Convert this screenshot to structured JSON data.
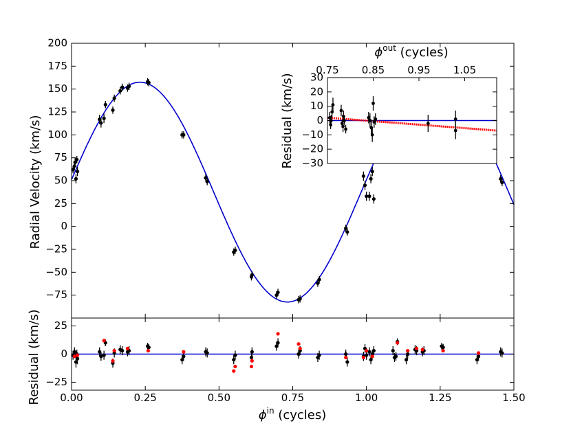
{
  "chart_data": [
    {
      "id": "main",
      "type": "scatter",
      "ylabel": "Radial Velocity (km/s)",
      "xlim": [
        0,
        1.5
      ],
      "ylim": [
        -100,
        200
      ],
      "yticks": [
        200,
        175,
        150,
        125,
        100,
        75,
        50,
        25,
        0,
        -25,
        -50,
        -75
      ],
      "ytick_labels": [
        "200",
        "175",
        "150",
        "125",
        "100",
        "75",
        "50",
        "25",
        "0",
        "−25",
        "−50",
        "−75"
      ],
      "model": {
        "type": "sinusoid",
        "gamma": 37.5,
        "amplitude": 120,
        "phase_peak": 0.232
      },
      "series": [
        {
          "name": "",
          "points": [
            [
              0.005,
              62,
              4
            ],
            [
              0.01,
              66,
              4
            ],
            [
              0.012,
              70,
              5
            ],
            [
              0.015,
              52,
              5
            ],
            [
              0.02,
              60,
              5
            ],
            [
              0.018,
              73,
              4
            ],
            [
              0.095,
              117,
              5
            ],
            [
              0.1,
              113,
              5
            ],
            [
              0.11,
              118,
              5
            ],
            [
              0.115,
              133,
              4
            ],
            [
              0.14,
              127,
              4
            ],
            [
              0.145,
              140,
              4
            ],
            [
              0.165,
              148,
              4
            ],
            [
              0.172,
              152,
              4
            ],
            [
              0.19,
              151,
              4
            ],
            [
              0.195,
              153,
              4
            ],
            [
              0.258,
              158,
              4
            ],
            [
              0.262,
              157,
              4
            ],
            [
              0.375,
              100,
              4
            ],
            [
              0.38,
              100,
              4
            ],
            [
              0.455,
              53,
              4
            ],
            [
              0.46,
              49,
              4
            ],
            [
              0.55,
              -28,
              4
            ],
            [
              0.555,
              -26,
              4
            ],
            [
              0.61,
              -55,
              4
            ],
            [
              0.612,
              -53,
              4
            ],
            [
              0.695,
              -75,
              4
            ],
            [
              0.7,
              -72,
              4
            ],
            [
              0.77,
              -80,
              4
            ],
            [
              0.775,
              -79,
              4
            ],
            [
              0.835,
              -62,
              4
            ],
            [
              0.84,
              -58,
              4
            ],
            [
              0.93,
              -2,
              4
            ],
            [
              0.935,
              -6,
              4
            ],
            [
              0.99,
              55,
              5
            ],
            [
              0.995,
              45,
              5
            ],
            [
              1.0,
              33,
              5
            ],
            [
              1.01,
              33,
              5
            ],
            [
              1.015,
              52,
              5
            ],
            [
              1.02,
              60,
              5
            ],
            [
              1.025,
              30,
              5
            ],
            [
              1.455,
              52,
              4
            ],
            [
              1.46,
              48,
              4
            ]
          ]
        }
      ]
    },
    {
      "id": "residual",
      "type": "scatter",
      "xlabel": "ϕin (cycles)",
      "xlabel_parts": {
        "symbol": "ϕ",
        "sup": "in",
        "rest": " (cycles)"
      },
      "ylabel": "Residual (km/s)",
      "xlim": [
        0,
        1.5
      ],
      "ylim": [
        -32,
        32
      ],
      "xticks": [
        0,
        0.25,
        0.5,
        0.75,
        1.0,
        1.25,
        1.5
      ],
      "xtick_labels": [
        "0.00",
        "0.25",
        "0.50",
        "0.75",
        "1.00",
        "1.25",
        "1.50"
      ],
      "yticks": [
        25,
        0,
        -25
      ],
      "ytick_labels": [
        "25",
        "0",
        "−25"
      ],
      "series": [
        {
          "name": "",
          "color": "#000000",
          "points": [
            [
              0.005,
              -1,
              4
            ],
            [
              0.01,
              2,
              4
            ],
            [
              0.015,
              -7,
              5
            ],
            [
              0.02,
              -4,
              5
            ],
            [
              0.018,
              0,
              4
            ],
            [
              0.095,
              2,
              4
            ],
            [
              0.1,
              -2,
              4
            ],
            [
              0.11,
              -1,
              4
            ],
            [
              0.115,
              10,
              3
            ],
            [
              0.14,
              -8,
              4
            ],
            [
              0.145,
              1,
              4
            ],
            [
              0.165,
              4,
              4
            ],
            [
              0.172,
              3,
              4
            ],
            [
              0.19,
              2,
              4
            ],
            [
              0.195,
              3,
              4
            ],
            [
              0.258,
              7,
              3
            ],
            [
              0.262,
              6,
              3
            ],
            [
              0.375,
              -5,
              4
            ],
            [
              0.38,
              -2,
              4
            ],
            [
              0.455,
              2,
              4
            ],
            [
              0.46,
              1,
              4
            ],
            [
              0.55,
              -5,
              4
            ],
            [
              0.555,
              -1,
              4
            ],
            [
              0.61,
              -3,
              4
            ],
            [
              0.612,
              2,
              4
            ],
            [
              0.695,
              7,
              4
            ],
            [
              0.7,
              10,
              4
            ],
            [
              0.77,
              0,
              4
            ],
            [
              0.775,
              3,
              4
            ],
            [
              0.835,
              -3,
              4
            ],
            [
              0.84,
              -1,
              4
            ],
            [
              0.93,
              0,
              4
            ],
            [
              0.935,
              -7,
              4
            ],
            [
              0.99,
              -2,
              4
            ],
            [
              0.995,
              5,
              4
            ],
            [
              1.0,
              -1,
              4
            ],
            [
              1.01,
              2,
              4
            ],
            [
              1.015,
              -5,
              4
            ],
            [
              1.02,
              0,
              4
            ],
            [
              1.025,
              3,
              4
            ],
            [
              1.09,
              3,
              4
            ],
            [
              1.095,
              -3,
              4
            ],
            [
              1.1,
              -2,
              4
            ],
            [
              1.105,
              11,
              3
            ],
            [
              1.135,
              -5,
              4
            ],
            [
              1.14,
              0,
              4
            ],
            [
              1.165,
              4,
              4
            ],
            [
              1.17,
              3,
              4
            ],
            [
              1.19,
              2,
              4
            ],
            [
              1.195,
              3,
              4
            ],
            [
              1.255,
              7,
              3
            ],
            [
              1.26,
              6,
              3
            ],
            [
              1.375,
              -5,
              4
            ],
            [
              1.38,
              -2,
              4
            ],
            [
              1.455,
              2,
              4
            ],
            [
              1.46,
              1,
              4
            ]
          ]
        },
        {
          "name": "",
          "color": "#ff0000",
          "points": [
            [
              0.01,
              -2
            ],
            [
              0.02,
              -1
            ],
            [
              0.11,
              12
            ],
            [
              0.14,
              -6
            ],
            [
              0.145,
              3
            ],
            [
              0.19,
              5
            ],
            [
              0.26,
              3
            ],
            [
              0.38,
              2
            ],
            [
              0.55,
              -15
            ],
            [
              0.555,
              -11
            ],
            [
              0.61,
              -11
            ],
            [
              0.612,
              -6
            ],
            [
              0.7,
              18
            ],
            [
              0.77,
              9
            ],
            [
              0.775,
              5
            ],
            [
              0.93,
              -3
            ],
            [
              0.99,
              -3
            ],
            [
              1.0,
              3
            ],
            [
              1.02,
              -2
            ],
            [
              1.105,
              10
            ],
            [
              1.14,
              3
            ],
            [
              1.17,
              5
            ],
            [
              1.19,
              4
            ],
            [
              1.26,
              3
            ],
            [
              1.38,
              1
            ]
          ]
        }
      ]
    },
    {
      "id": "inset",
      "type": "scatter",
      "xlabel": "ϕout (cycles)",
      "xlabel_parts": {
        "symbol": "ϕ",
        "sup": "out",
        "rest": " (cycles)"
      },
      "ylabel": "Residual (km/s)",
      "xlim": [
        0.75,
        1.12
      ],
      "ylim": [
        -30,
        30
      ],
      "xticks": [
        0.75,
        0.85,
        0.95,
        1.05
      ],
      "xtick_labels": [
        "0.75",
        "0.85",
        "0.95",
        "1.05"
      ],
      "yticks": [
        30,
        20,
        10,
        0,
        -10,
        -20,
        -30
      ],
      "ytick_labels": [
        "30",
        "20",
        "10",
        "0",
        "−10",
        "−20",
        "−30"
      ],
      "trend": {
        "from": [
          0.75,
          2
        ],
        "to": [
          1.12,
          -7
        ]
      },
      "series": [
        {
          "name": "",
          "points": [
            [
              0.755,
              2,
              4
            ],
            [
              0.757,
              -3,
              3
            ],
            [
              0.76,
              6,
              4
            ],
            [
              0.762,
              11,
              5
            ],
            [
              0.758,
              0,
              4
            ],
            [
              0.78,
              7,
              4
            ],
            [
              0.782,
              -2,
              3
            ],
            [
              0.785,
              3,
              4
            ],
            [
              0.787,
              0,
              3
            ],
            [
              0.79,
              -6,
              3
            ],
            [
              0.784,
              -4,
              4
            ],
            [
              0.84,
              2,
              4
            ],
            [
              0.843,
              0,
              5
            ],
            [
              0.846,
              -5,
              5
            ],
            [
              0.848,
              -10,
              5
            ],
            [
              0.85,
              12,
              5
            ],
            [
              0.852,
              -1,
              4
            ],
            [
              0.855,
              1,
              4
            ],
            [
              0.97,
              -2,
              6
            ],
            [
              1.03,
              -7,
              6
            ],
            [
              1.03,
              1,
              6
            ]
          ]
        }
      ]
    }
  ]
}
